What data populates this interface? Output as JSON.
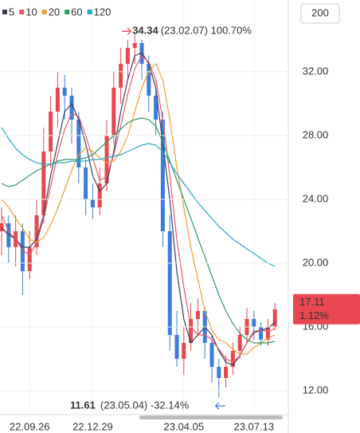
{
  "chart_data": {
    "type": "candlestick",
    "range_button": "200",
    "categories": [
      null,
      null,
      null,
      null,
      "22.09.26",
      null,
      null,
      null,
      null,
      null,
      null,
      null,
      null,
      "22.12.29",
      null,
      null,
      null,
      null,
      null,
      null,
      null,
      null,
      null,
      null,
      null,
      null,
      "23.04.05",
      null,
      null,
      null,
      null,
      null,
      null,
      null,
      null,
      null,
      "23.07.13",
      null,
      null,
      null
    ],
    "open": [
      22.0,
      22.5,
      21.0,
      22.0,
      19.5,
      21.0,
      23.0,
      27.0,
      29.5,
      31.0,
      30.5,
      29.0,
      26.0,
      24.0,
      23.5,
      25.0,
      28.0,
      31.0,
      32.5,
      33.5,
      33.8,
      32.5,
      30.5,
      29.0,
      22.0,
      15.5,
      14.0,
      15.0,
      16.5,
      17.0,
      15.0,
      13.5,
      12.8,
      13.5,
      14.5,
      15.5,
      16.5,
      16.0,
      15.2,
      16.0
    ],
    "high": [
      23.5,
      23.0,
      23.0,
      22.5,
      22.0,
      24.0,
      28.5,
      30.5,
      32.0,
      31.8,
      31.0,
      29.5,
      26.5,
      25.0,
      26.0,
      29.0,
      32.0,
      33.5,
      34.0,
      34.34,
      34.0,
      33.0,
      31.0,
      29.5,
      23.0,
      17.0,
      16.0,
      17.5,
      17.8,
      17.2,
      15.5,
      14.0,
      14.2,
      15.0,
      16.0,
      17.2,
      17.0,
      16.3,
      16.5,
      17.5
    ],
    "low": [
      20.5,
      20.0,
      19.8,
      18.0,
      19.0,
      20.5,
      22.5,
      26.0,
      28.5,
      29.0,
      27.5,
      25.0,
      23.0,
      22.8,
      23.0,
      24.5,
      27.5,
      30.0,
      31.5,
      32.5,
      31.5,
      29.5,
      28.0,
      21.0,
      14.5,
      13.5,
      13.0,
      14.5,
      15.5,
      14.0,
      12.5,
      11.61,
      12.2,
      13.0,
      14.0,
      15.0,
      15.2,
      14.8,
      14.8,
      15.8
    ],
    "close": [
      22.5,
      21.0,
      22.0,
      19.5,
      21.0,
      23.0,
      27.0,
      29.5,
      31.0,
      30.5,
      29.0,
      26.0,
      24.0,
      23.5,
      25.0,
      28.0,
      31.0,
      32.5,
      33.5,
      33.8,
      32.5,
      30.5,
      29.0,
      22.0,
      15.5,
      14.0,
      15.0,
      16.5,
      17.0,
      15.0,
      13.5,
      12.8,
      13.5,
      14.5,
      15.5,
      16.5,
      16.0,
      15.2,
      16.0,
      17.11
    ],
    "up_color": "#e8474f",
    "down_color": "#3b7dd8",
    "series": [
      {
        "name": "5",
        "color": "#3a3f58",
        "values": [
          22.2,
          21.8,
          21.5,
          21.0,
          21.0,
          21.5,
          23.0,
          25.5,
          27.5,
          29.5,
          30,
          29,
          27.5,
          25.5,
          24.5,
          25,
          27,
          29.5,
          31.5,
          33,
          33.2,
          32.5,
          31,
          27.5,
          24,
          19.5,
          16.5,
          15,
          15.5,
          16,
          15.5,
          14.5,
          13.8,
          13.6,
          14.2,
          15,
          15.7,
          15.8,
          15.9,
          16.3
        ]
      },
      {
        "name": "10",
        "color": "#e8566b",
        "values": [
          23,
          22,
          21.5,
          20.8,
          20.5,
          21.3,
          22.8,
          24.8,
          26.8,
          28.4,
          29.4,
          29.2,
          28.0,
          26.6,
          25.2,
          25.4,
          26.8,
          28.6,
          30.6,
          32.2,
          33.0,
          32.6,
          31.5,
          29.0,
          25.5,
          21.5,
          18.5,
          16.0,
          15.5,
          15.5,
          15.2,
          14.6,
          14.0,
          13.8,
          14.2,
          15.0,
          15.6,
          15.8,
          15.7,
          15.9
        ]
      },
      {
        "name": "20",
        "color": "#f39c32",
        "values": [
          24,
          23.5,
          22.8,
          22.2,
          21.5,
          21.3,
          21.6,
          22.4,
          23.4,
          24.6,
          25.8,
          26.8,
          27.2,
          27.0,
          26.6,
          26.3,
          26.4,
          27.0,
          28.0,
          29.5,
          31.0,
          32.0,
          32.5,
          31.5,
          29.0,
          26.0,
          23.5,
          21.0,
          19.0,
          17.0,
          15.8,
          15.2,
          15.0,
          14.6,
          14.3,
          14.3,
          14.7,
          15.0,
          15.3,
          15.5
        ]
      },
      {
        "name": "60",
        "color": "#2e9e6a",
        "values": [
          25.0,
          24.8,
          24.9,
          25.2,
          25.5,
          25.8,
          26.0,
          26.2,
          26.4,
          26.5,
          26.5,
          26.5,
          26.6,
          26.8,
          27.2,
          27.6,
          28.0,
          28.4,
          28.8,
          29.0,
          29.1,
          29.0,
          28.6,
          27.6,
          26.4,
          25.2,
          24.0,
          22.8,
          21.6,
          20.4,
          19.2,
          18.0,
          17.0,
          16.2,
          15.6,
          15.2,
          15.0,
          15.0,
          15.0,
          15.1
        ]
      },
      {
        "name": "120",
        "color": "#2aa6c4",
        "values": [
          28.5,
          27.8,
          27.2,
          26.8,
          26.5,
          26.3,
          26.2,
          26.2,
          26.3,
          26.3,
          26.4,
          26.4,
          26.4,
          26.5,
          26.5,
          26.6,
          26.7,
          26.8,
          27.0,
          27.2,
          27.4,
          27.5,
          27.4,
          27.0,
          26.3,
          25.6,
          25.0,
          24.4,
          23.8,
          23.3,
          22.8,
          22.3,
          21.9,
          21.5,
          21.2,
          20.9,
          20.6,
          20.3,
          20.0,
          19.8
        ]
      }
    ],
    "ylim": [
      10.5,
      36.5
    ],
    "yticks": [
      {
        "value": 12,
        "label": "12.00"
      },
      {
        "value": 16,
        "label": "16.00"
      },
      {
        "value": 20,
        "label": "20.00"
      },
      {
        "value": 24,
        "label": "24.00"
      },
      {
        "value": 28,
        "label": "28.00"
      },
      {
        "value": 32,
        "label": "32.00"
      }
    ],
    "grid": true,
    "max_annotation": {
      "price": 34.34,
      "text": "(23.02.07) 100.70%",
      "index": 19
    },
    "min_annotation": {
      "price": 11.61,
      "text": "(23.05.04) -32.14%",
      "index": 31
    },
    "last_price": {
      "price": 17.11,
      "change": "1.12%"
    }
  }
}
